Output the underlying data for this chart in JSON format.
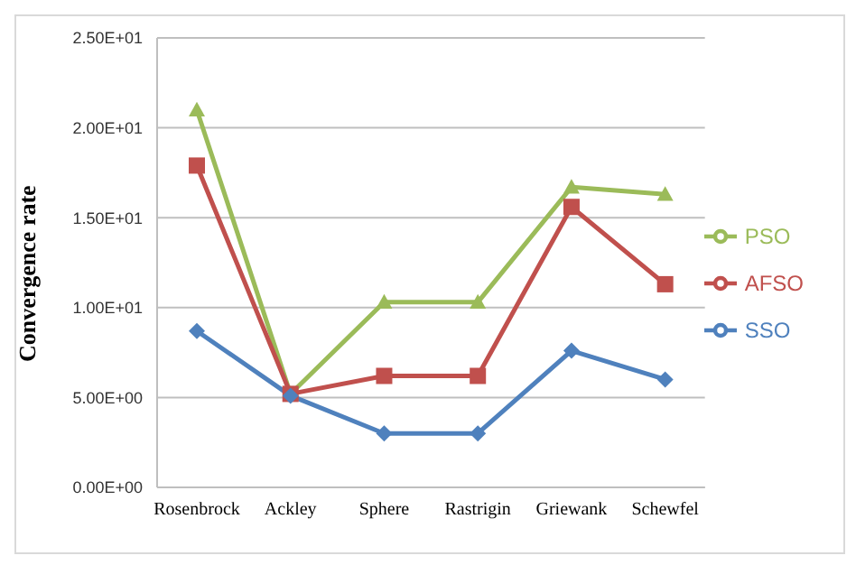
{
  "chart_data": {
    "type": "line",
    "ylabel": "Convergence rate",
    "categories": [
      "Rosenbrock",
      "Ackley",
      "Sphere",
      "Rastrigin",
      "Griewank",
      "Schewfel"
    ],
    "series": [
      {
        "name": "PSO",
        "color": "#9bbb59",
        "marker": "triangle",
        "values": [
          21.0,
          5.2,
          10.3,
          10.3,
          16.7,
          16.3
        ]
      },
      {
        "name": "AFSO",
        "color": "#c0504d",
        "marker": "square",
        "values": [
          17.9,
          5.2,
          6.2,
          6.2,
          15.6,
          11.3
        ]
      },
      {
        "name": "SSO",
        "color": "#4f81bd",
        "marker": "diamond",
        "values": [
          8.7,
          5.1,
          3.0,
          3.0,
          7.6,
          6.0
        ]
      }
    ],
    "ylim": [
      0,
      25
    ],
    "yticks": [
      {
        "value": 0,
        "label": "0.00E+00"
      },
      {
        "value": 5,
        "label": "5.00E+00"
      },
      {
        "value": 10,
        "label": "1.00E+01"
      },
      {
        "value": 15,
        "label": "1.50E+01"
      },
      {
        "value": 20,
        "label": "2.00E+01"
      },
      {
        "value": 25,
        "label": "2.50E+01"
      }
    ],
    "grid": "y",
    "legend": "right"
  }
}
